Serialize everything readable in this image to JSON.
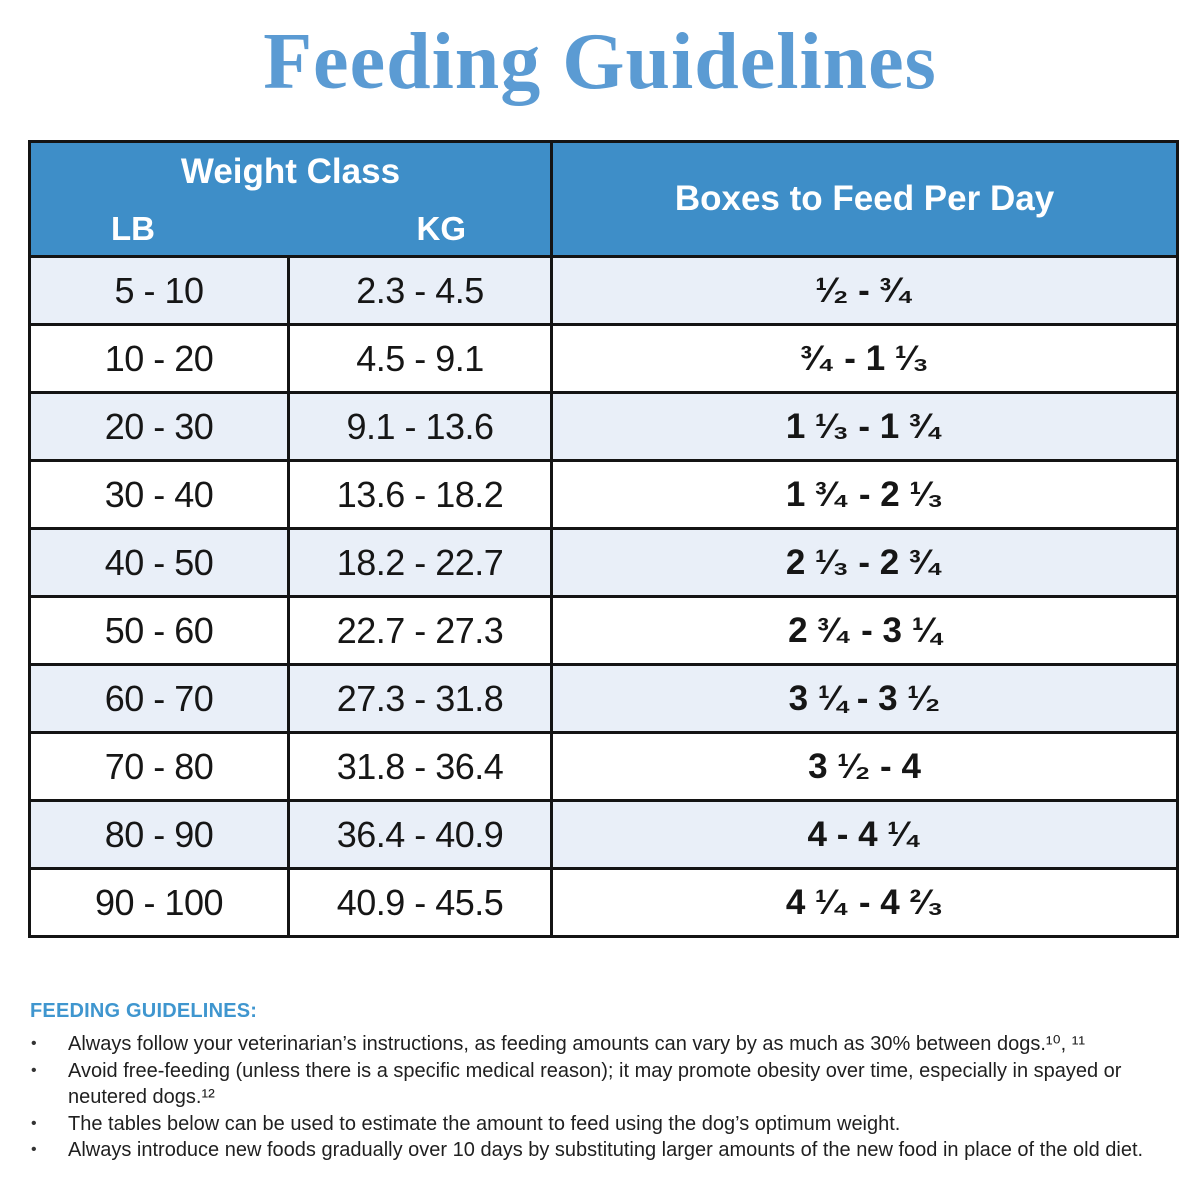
{
  "title": "Feeding Guidelines",
  "colors": {
    "title_blue": "#5b9bd3",
    "header_bg": "#3e8ec8",
    "header_text": "#ffffff",
    "row_alt_bg": "#e9eff8",
    "row_bg": "#ffffff",
    "border": "#141414",
    "footer_heading_blue": "#3f96cf",
    "body_text": "#1f1f1f"
  },
  "table": {
    "header": {
      "weight_class_label": "Weight Class",
      "lb_label": "LB",
      "kg_label": "KG",
      "boxes_label": "Boxes to Feed Per Day"
    },
    "rows": [
      {
        "lb": "5 - 10",
        "kg": "2.3 - 4.5",
        "boxes": "¹⁄₂ - ³⁄₄"
      },
      {
        "lb": "10 - 20",
        "kg": "4.5 - 9.1",
        "boxes": "³⁄₄ - 1 ¹⁄₃"
      },
      {
        "lb": "20 - 30",
        "kg": "9.1 - 13.6",
        "boxes": "1 ¹⁄₃ - 1 ³⁄₄"
      },
      {
        "lb": "30 - 40",
        "kg": "13.6 - 18.2",
        "boxes": "1 ³⁄₄ - 2 ¹⁄₃"
      },
      {
        "lb": "40 - 50",
        "kg": "18.2 - 22.7",
        "boxes": "2 ¹⁄₃ - 2 ³⁄₄"
      },
      {
        "lb": "50 - 60",
        "kg": "22.7 - 27.3",
        "boxes": "2 ³⁄₄ - 3 ¼"
      },
      {
        "lb": "60 - 70",
        "kg": "27.3 - 31.8",
        "boxes": "3 ¼ - 3 ¹⁄₂"
      },
      {
        "lb": "70 - 80",
        "kg": "31.8 - 36.4",
        "boxes": "3 ¹⁄₂ - 4"
      },
      {
        "lb": "80 - 90",
        "kg": "36.4 - 40.9",
        "boxes": "4 - 4 ¹⁄₄"
      },
      {
        "lb": "90 - 100",
        "kg": "40.9 - 45.5",
        "boxes": "4 ¹⁄₄ - 4 ²⁄₃"
      }
    ]
  },
  "footer": {
    "heading": "FEEDING GUIDELINES:",
    "bullets": [
      "Always follow your veterinarian’s instructions, as feeding amounts can vary by as much as 30% between dogs.¹⁰, ¹¹",
      "Avoid free-feeding (unless there is a specific medical reason); it may promote obesity over time, especially in spayed or neutered dogs.¹²",
      "The tables below can be used to estimate the amount to feed using the dog’s optimum weight.",
      "Always introduce new foods gradually over 10 days by substituting larger amounts of the new food in place of the old diet."
    ]
  }
}
